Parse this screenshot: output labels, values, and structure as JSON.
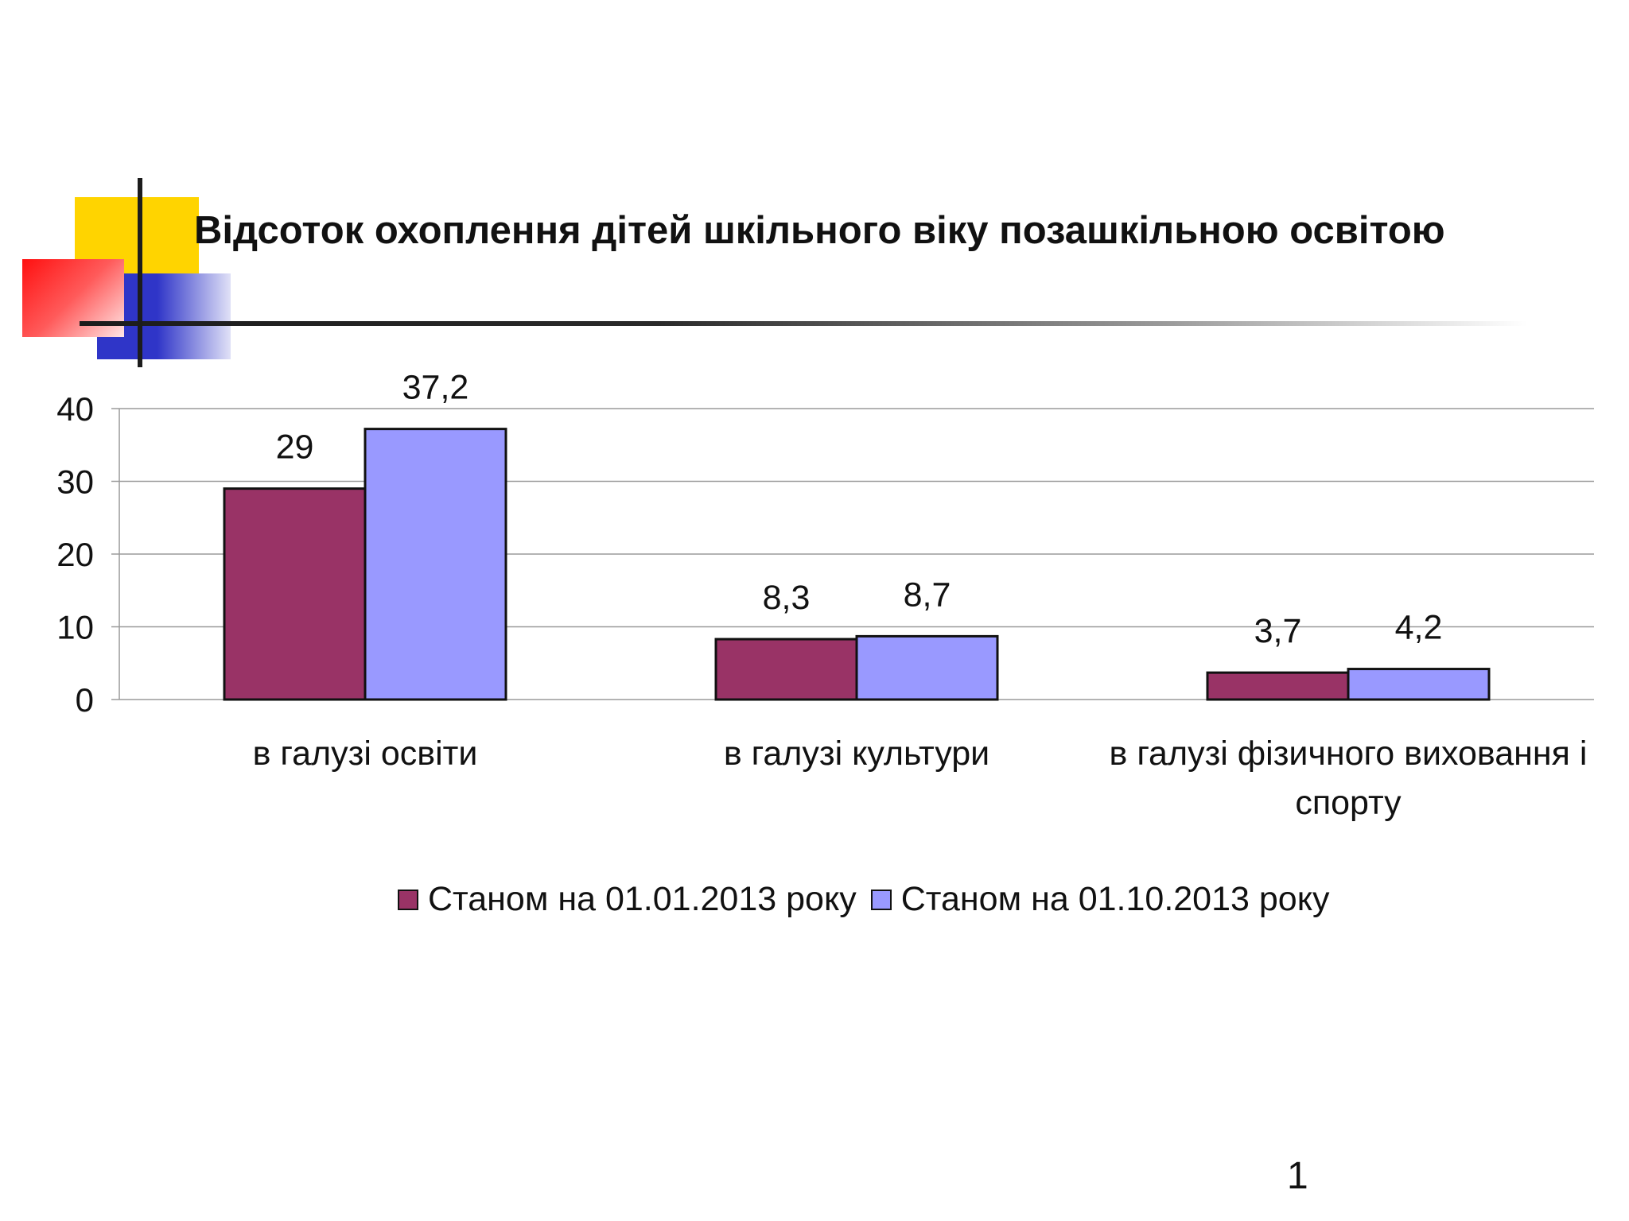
{
  "slide": {
    "title": "Відсоток охоплення дітей  шкільного віку позашкільною освітою",
    "page_number": "1"
  },
  "colors": {
    "series1": "#993366",
    "series2": "#9999ff",
    "gridline": "#9a9a9a",
    "deco_yellow": "#ffd400",
    "deco_blue": "#2f35c8",
    "deco_red": "#ff1010"
  },
  "chart_data": {
    "type": "bar",
    "categories": [
      [
        "в галузі освіти"
      ],
      [
        "в галузі культури"
      ],
      [
        "в галузі фізичного виховання і",
        "спорту"
      ]
    ],
    "series": [
      {
        "name": "Станом на 01.01.2013 року",
        "values": [
          29,
          8.3,
          3.7
        ],
        "labels": [
          "29",
          "8,3",
          "3,7"
        ]
      },
      {
        "name": "Станом на 01.10.2013 року",
        "values": [
          37.2,
          8.7,
          4.2
        ],
        "labels": [
          "37,2",
          "8,7",
          "4,2"
        ]
      }
    ],
    "ylim": [
      0,
      40
    ],
    "yticks": [
      0,
      10,
      20,
      30,
      40
    ],
    "grid": true,
    "legend": "bottom"
  }
}
